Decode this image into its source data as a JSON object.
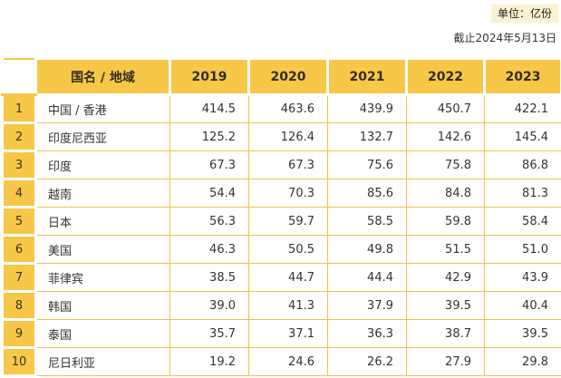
{
  "meta": {
    "unit_badge": "单位：亿份",
    "as_of_date": "截止2024年5月13日"
  },
  "table": {
    "country_header": "国名 / 地域",
    "year_headers": [
      "2019",
      "2020",
      "2021",
      "2022",
      "2023"
    ],
    "rows": [
      {
        "rank": "1",
        "country": "中国 / 香港",
        "values": [
          "414.5",
          "463.6",
          "439.9",
          "450.7",
          "422.1"
        ]
      },
      {
        "rank": "2",
        "country": "印度尼西亚",
        "values": [
          "125.2",
          "126.4",
          "132.7",
          "142.6",
          "145.4"
        ]
      },
      {
        "rank": "3",
        "country": "印度",
        "values": [
          "67.3",
          "67.3",
          "75.6",
          "75.8",
          "86.8"
        ]
      },
      {
        "rank": "4",
        "country": "越南",
        "values": [
          "54.4",
          "70.3",
          "85.6",
          "84.8",
          "81.3"
        ]
      },
      {
        "rank": "5",
        "country": "日本",
        "values": [
          "56.3",
          "59.7",
          "58.5",
          "59.8",
          "58.4"
        ]
      },
      {
        "rank": "6",
        "country": "美国",
        "values": [
          "46.3",
          "50.5",
          "49.8",
          "51.5",
          "51.0"
        ]
      },
      {
        "rank": "7",
        "country": "菲律宾",
        "values": [
          "38.5",
          "44.7",
          "44.4",
          "42.9",
          "43.9"
        ]
      },
      {
        "rank": "8",
        "country": "韩国",
        "values": [
          "39.0",
          "41.3",
          "37.9",
          "39.5",
          "40.4"
        ]
      },
      {
        "rank": "9",
        "country": "泰国",
        "values": [
          "35.7",
          "37.1",
          "36.3",
          "38.7",
          "39.5"
        ]
      },
      {
        "rank": "10",
        "country": "尼日利亚",
        "values": [
          "19.2",
          "24.6",
          "26.2",
          "27.9",
          "29.8"
        ]
      }
    ]
  },
  "colors": {
    "accent_yellow": "#F7C848",
    "grid_yellow": "#F2C14B",
    "badge_bg": "#FAF3D2",
    "text": "#333333"
  },
  "chart_data": {
    "type": "table",
    "title": "",
    "unit_note": "单位：亿份",
    "as_of": "截止2024年5月13日",
    "columns": [
      "国名 / 地域",
      "2019",
      "2020",
      "2021",
      "2022",
      "2023"
    ],
    "rows": [
      [
        "中国 / 香港",
        414.5,
        463.6,
        439.9,
        450.7,
        422.1
      ],
      [
        "印度尼西亚",
        125.2,
        126.4,
        132.7,
        142.6,
        145.4
      ],
      [
        "印度",
        67.3,
        67.3,
        75.6,
        75.8,
        86.8
      ],
      [
        "越南",
        54.4,
        70.3,
        85.6,
        84.8,
        81.3
      ],
      [
        "日本",
        56.3,
        59.7,
        58.5,
        59.8,
        58.4
      ],
      [
        "美国",
        46.3,
        50.5,
        49.8,
        51.5,
        51.0
      ],
      [
        "菲律宾",
        38.5,
        44.7,
        44.4,
        42.9,
        43.9
      ],
      [
        "韩国",
        39.0,
        41.3,
        37.9,
        39.5,
        40.4
      ],
      [
        "泰国",
        35.7,
        37.1,
        36.3,
        38.7,
        39.5
      ],
      [
        "尼日利亚",
        19.2,
        24.6,
        26.2,
        27.9,
        29.8
      ]
    ]
  }
}
